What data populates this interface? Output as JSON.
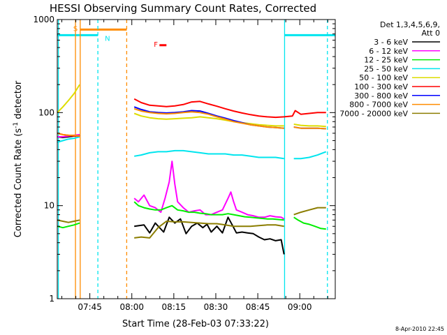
{
  "chart_data": {
    "type": "line",
    "title": "HESSI Observing Summary Count Rates, Corrected",
    "xlabel": "Start Time (28-Feb-03 07:33:22)",
    "ylabel_main": "Corrected Count Rate (s",
    "ylabel_exponent": "-1",
    "ylabel_tail": " detector",
    "y_scale": "log",
    "ylim": [
      1,
      1000
    ],
    "xlim_minutes": [
      0,
      99.3
    ],
    "x_tick_labels": [
      "07:45",
      "08:00",
      "08:15",
      "08:30",
      "08:45",
      "09:00"
    ],
    "x_tick_minutes": [
      11.63,
      26.63,
      41.63,
      56.63,
      71.63,
      86.63
    ],
    "y_tick_labels": [
      "1",
      "10",
      "100",
      "1000"
    ],
    "y_tick_values": [
      1,
      10,
      100,
      1000
    ],
    "data_gaps_minutes": [
      [
        9.3,
        27.3
      ],
      [
        81.3,
        84.5
      ]
    ],
    "series": [
      {
        "name": "3 - 6 keV",
        "color": "#000000",
        "points": [
          [
            0,
            55
          ],
          [
            2,
            54
          ],
          [
            4,
            55
          ],
          [
            6,
            56
          ],
          [
            8,
            57
          ],
          [
            27.5,
            6
          ],
          [
            31,
            6.2
          ],
          [
            33,
            5.1
          ],
          [
            35,
            6.5
          ],
          [
            38,
            5.2
          ],
          [
            40,
            7.5
          ],
          [
            42,
            6.5
          ],
          [
            44,
            7.2
          ],
          [
            46,
            5.0
          ],
          [
            48,
            6.0
          ],
          [
            50,
            6.5
          ],
          [
            52,
            5.8
          ],
          [
            53.5,
            6.3
          ],
          [
            55,
            5.2
          ],
          [
            57,
            6.0
          ],
          [
            59,
            5.1
          ],
          [
            61,
            7.5
          ],
          [
            62.5,
            6.2
          ],
          [
            64,
            5.1
          ],
          [
            66,
            5.2
          ],
          [
            68,
            5.1
          ],
          [
            70,
            5.0
          ],
          [
            72,
            4.6
          ],
          [
            74,
            4.3
          ],
          [
            76,
            4.4
          ],
          [
            78,
            4.2
          ],
          [
            80,
            4.3
          ],
          [
            81,
            3.0
          ]
        ]
      },
      {
        "name": "6 - 12 keV",
        "color": "#ff00ff",
        "points": [
          [
            0,
            55
          ],
          [
            2,
            55
          ],
          [
            4,
            56
          ],
          [
            6,
            57
          ],
          [
            8,
            58
          ],
          [
            27.5,
            12
          ],
          [
            29,
            11
          ],
          [
            31,
            13
          ],
          [
            33,
            10
          ],
          [
            35,
            9.5
          ],
          [
            37,
            8.5
          ],
          [
            38.5,
            12
          ],
          [
            40,
            18
          ],
          [
            41,
            30
          ],
          [
            42,
            17
          ],
          [
            43,
            11
          ],
          [
            45,
            9.5
          ],
          [
            47,
            8.5
          ],
          [
            49,
            8.8
          ],
          [
            51,
            9.0
          ],
          [
            53,
            8.0
          ],
          [
            55,
            8.0
          ],
          [
            57,
            8.5
          ],
          [
            59,
            9.0
          ],
          [
            61,
            12
          ],
          [
            62,
            14
          ],
          [
            63,
            11
          ],
          [
            64,
            9.0
          ],
          [
            66,
            8.5
          ],
          [
            68,
            8.0
          ],
          [
            70,
            7.8
          ],
          [
            72,
            7.5
          ],
          [
            74,
            7.5
          ],
          [
            76,
            7.8
          ],
          [
            78,
            7.6
          ],
          [
            80,
            7.5
          ],
          [
            81,
            7.2
          ]
        ]
      },
      {
        "name": "12 - 25 keV",
        "color": "#00ee00",
        "points": [
          [
            0,
            6
          ],
          [
            2,
            5.8
          ],
          [
            4,
            6
          ],
          [
            6,
            6.2
          ],
          [
            8,
            6.5
          ],
          [
            27.5,
            11
          ],
          [
            29,
            10
          ],
          [
            31,
            9.5
          ],
          [
            33,
            9.2
          ],
          [
            35,
            9.0
          ],
          [
            37,
            9.0
          ],
          [
            39,
            9.5
          ],
          [
            41,
            10
          ],
          [
            43,
            9.0
          ],
          [
            45,
            8.8
          ],
          [
            47,
            8.5
          ],
          [
            49,
            8.5
          ],
          [
            51,
            8.3
          ],
          [
            53,
            8.2
          ],
          [
            55,
            8.0
          ],
          [
            57,
            8.0
          ],
          [
            59,
            8.0
          ],
          [
            61,
            8.2
          ],
          [
            63,
            8.0
          ],
          [
            65,
            7.8
          ],
          [
            67,
            7.6
          ],
          [
            69,
            7.5
          ],
          [
            71,
            7.4
          ],
          [
            73,
            7.3
          ],
          [
            75,
            7.2
          ],
          [
            77,
            7.2
          ],
          [
            79,
            7.1
          ],
          [
            81,
            7.0
          ],
          [
            84.5,
            7.5
          ],
          [
            86,
            7.0
          ],
          [
            88,
            6.5
          ],
          [
            90,
            6.3
          ],
          [
            92,
            6.0
          ],
          [
            94,
            5.7
          ],
          [
            96,
            5.6
          ]
        ]
      },
      {
        "name": "25 - 50 keV",
        "color": "#00e5ee",
        "points": [
          [
            0,
            48
          ],
          [
            2,
            50
          ],
          [
            4,
            52
          ],
          [
            6,
            53
          ],
          [
            8,
            55
          ],
          [
            27.5,
            34
          ],
          [
            30,
            35
          ],
          [
            33,
            37
          ],
          [
            36,
            38
          ],
          [
            39,
            38
          ],
          [
            42,
            39
          ],
          [
            45,
            39
          ],
          [
            48,
            38
          ],
          [
            51,
            37
          ],
          [
            54,
            36
          ],
          [
            57,
            36
          ],
          [
            60,
            36
          ],
          [
            63,
            35
          ],
          [
            66,
            35
          ],
          [
            69,
            34
          ],
          [
            72,
            33
          ],
          [
            75,
            33
          ],
          [
            78,
            33
          ],
          [
            81,
            32
          ],
          [
            84.5,
            32
          ],
          [
            87,
            32
          ],
          [
            90,
            33
          ],
          [
            93,
            35
          ],
          [
            95,
            37
          ],
          [
            96,
            38
          ]
        ]
      },
      {
        "name": "50 - 100 keV",
        "color": "#dddd00",
        "points": [
          [
            0,
            100
          ],
          [
            2,
            115
          ],
          [
            4,
            135
          ],
          [
            6,
            160
          ],
          [
            8,
            200
          ],
          [
            27.5,
            98
          ],
          [
            30,
            92
          ],
          [
            33,
            88
          ],
          [
            36,
            86
          ],
          [
            39,
            85
          ],
          [
            42,
            86
          ],
          [
            45,
            87
          ],
          [
            48,
            88
          ],
          [
            51,
            90
          ],
          [
            54,
            88
          ],
          [
            57,
            86
          ],
          [
            60,
            83
          ],
          [
            63,
            80
          ],
          [
            66,
            78
          ],
          [
            69,
            76
          ],
          [
            72,
            74
          ],
          [
            75,
            73
          ],
          [
            78,
            72
          ],
          [
            81,
            72
          ],
          [
            84.5,
            75
          ],
          [
            87,
            73
          ],
          [
            90,
            72
          ],
          [
            93,
            72
          ],
          [
            96,
            71
          ]
        ]
      },
      {
        "name": "100 - 300 keV",
        "color": "#ff0000",
        "points": [
          [
            0,
            60
          ],
          [
            2,
            58
          ],
          [
            4,
            57
          ],
          [
            6,
            56
          ],
          [
            8,
            56
          ],
          [
            27.5,
            140
          ],
          [
            30,
            128
          ],
          [
            33,
            120
          ],
          [
            36,
            118
          ],
          [
            39,
            116
          ],
          [
            42,
            118
          ],
          [
            45,
            122
          ],
          [
            48,
            130
          ],
          [
            51,
            132
          ],
          [
            54,
            124
          ],
          [
            57,
            117
          ],
          [
            60,
            110
          ],
          [
            63,
            104
          ],
          [
            66,
            99
          ],
          [
            69,
            95
          ],
          [
            72,
            92
          ],
          [
            75,
            90
          ],
          [
            78,
            89
          ],
          [
            81,
            90
          ],
          [
            84,
            92
          ],
          [
            85,
            105
          ],
          [
            87,
            96
          ],
          [
            90,
            98
          ],
          [
            93,
            100
          ],
          [
            96,
            100
          ]
        ]
      },
      {
        "name": "300 - 800 keV",
        "color": "#0000ff",
        "points": [
          [
            27.5,
            115
          ],
          [
            30,
            108
          ],
          [
            33,
            102
          ],
          [
            36,
            100
          ],
          [
            39,
            99
          ],
          [
            42,
            100
          ],
          [
            45,
            102
          ],
          [
            48,
            105
          ],
          [
            51,
            104
          ],
          [
            54,
            98
          ],
          [
            57,
            92
          ],
          [
            60,
            87
          ],
          [
            63,
            82
          ],
          [
            66,
            78
          ],
          [
            69,
            74
          ],
          [
            72,
            72
          ],
          [
            75,
            70
          ],
          [
            78,
            69
          ],
          [
            81,
            68
          ],
          [
            84.5,
            70
          ],
          [
            87,
            68
          ],
          [
            90,
            68
          ],
          [
            93,
            68
          ],
          [
            96,
            67
          ]
        ]
      },
      {
        "name": "800 - 7000 keV",
        "color": "#ff8c00",
        "points": [
          [
            0,
            60
          ],
          [
            2,
            58
          ],
          [
            4,
            57
          ],
          [
            6,
            57
          ],
          [
            8,
            56
          ],
          [
            27.5,
            110
          ],
          [
            30,
            104
          ],
          [
            33,
            100
          ],
          [
            36,
            98
          ],
          [
            39,
            97
          ],
          [
            42,
            98
          ],
          [
            45,
            100
          ],
          [
            48,
            102
          ],
          [
            51,
            100
          ],
          [
            54,
            96
          ],
          [
            57,
            90
          ],
          [
            60,
            85
          ],
          [
            63,
            80
          ],
          [
            66,
            77
          ],
          [
            69,
            74
          ],
          [
            72,
            72
          ],
          [
            75,
            70
          ],
          [
            78,
            69
          ],
          [
            81,
            68
          ],
          [
            84.5,
            70
          ],
          [
            87,
            68
          ],
          [
            90,
            68
          ],
          [
            93,
            68
          ],
          [
            96,
            67
          ]
        ]
      },
      {
        "name": "7000 - 20000 keV",
        "color": "#8b7d00",
        "points": [
          [
            0,
            7
          ],
          [
            2,
            6.8
          ],
          [
            4,
            6.6
          ],
          [
            6,
            6.8
          ],
          [
            8,
            7
          ],
          [
            27.5,
            4.5
          ],
          [
            30,
            4.6
          ],
          [
            33,
            4.5
          ],
          [
            36,
            5.8
          ],
          [
            39,
            6.8
          ],
          [
            42,
            6.7
          ],
          [
            45,
            6.7
          ],
          [
            48,
            6.6
          ],
          [
            51,
            6.5
          ],
          [
            54,
            6.4
          ],
          [
            57,
            6.4
          ],
          [
            60,
            6.2
          ],
          [
            63,
            6.0
          ],
          [
            66,
            6.0
          ],
          [
            69,
            6.0
          ],
          [
            72,
            6.1
          ],
          [
            75,
            6.2
          ],
          [
            78,
            6.2
          ],
          [
            81,
            6.0
          ],
          [
            84.5,
            8.0
          ],
          [
            87,
            8.5
          ],
          [
            90,
            9.0
          ],
          [
            93,
            9.5
          ],
          [
            96,
            9.5
          ]
        ]
      }
    ],
    "state_bars": [
      {
        "label": "S",
        "color": "#ff8c00",
        "start_minutes": 8.2,
        "end_minutes": 24.8,
        "y_value": 780
      },
      {
        "label": "N",
        "color": "#00e5ee",
        "start_minutes": 0,
        "end_minutes": 14.5,
        "y_value": 680
      },
      {
        "label": "",
        "color": "#00e5ee",
        "start_minutes": 81.2,
        "end_minutes": 99.3,
        "y_value": 680
      },
      {
        "label": "F",
        "color": "#ff0000",
        "start_minutes": 36.5,
        "end_minutes": 39.0,
        "y_value": 530
      }
    ],
    "attenuator_lines": [
      {
        "minute": 0.4,
        "color": "#00e5ee",
        "style": "solid"
      },
      {
        "minute": 6.5,
        "color": "#ff8c00",
        "style": "solid"
      },
      {
        "minute": 8.2,
        "color": "#ff8c00",
        "style": "solid"
      },
      {
        "minute": 14.5,
        "color": "#00e5ee",
        "style": "dashed"
      },
      {
        "minute": 24.8,
        "color": "#ff8c00",
        "style": "dashed"
      },
      {
        "minute": 81.2,
        "color": "#00e5ee",
        "style": "solid"
      },
      {
        "minute": 96.5,
        "color": "#00e5ee",
        "style": "dashed"
      }
    ]
  },
  "legend": {
    "detectors": "Det 1,3,4,5,6,9,",
    "attenuator": "Att 0"
  },
  "footer": {
    "timestamp": "8-Apr-2010 22:45"
  }
}
